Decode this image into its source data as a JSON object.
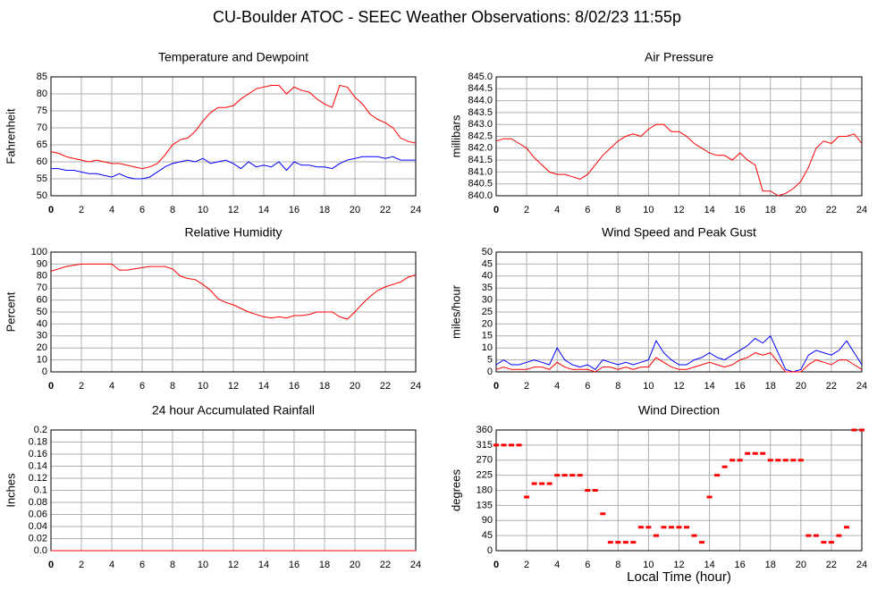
{
  "title": "CU-Boulder ATOC - SEEC Weather Observations: 8/02/23 11:55p",
  "chart_data": [
    {
      "type": "line",
      "title": "Temperature and Dewpoint",
      "ylabel": "Fahrenheit",
      "x": [
        0,
        0.5,
        1,
        1.5,
        2,
        2.5,
        3,
        3.5,
        4,
        4.5,
        5,
        5.5,
        6,
        6.5,
        7,
        7.5,
        8,
        8.5,
        9,
        9.5,
        10,
        10.5,
        11,
        11.5,
        12,
        12.5,
        13,
        13.5,
        14,
        14.5,
        15,
        15.5,
        16,
        16.5,
        17,
        17.5,
        18,
        18.5,
        19,
        19.5,
        20,
        20.5,
        21,
        21.5,
        22,
        22.5,
        23,
        23.5,
        24
      ],
      "series": [
        {
          "color": "#ff0000",
          "values": [
            63,
            62.5,
            61.5,
            61,
            60.5,
            60,
            60.5,
            60,
            59.5,
            59.5,
            59,
            58.5,
            58,
            58.5,
            59.5,
            62,
            65,
            66.5,
            67,
            69,
            72,
            74.5,
            76,
            76,
            76.5,
            78.5,
            80,
            81.5,
            82,
            82.5,
            82.5,
            80,
            82,
            81,
            80.5,
            78.5,
            77,
            76,
            82.5,
            82,
            79,
            77,
            74,
            72.5,
            71.5,
            70,
            67,
            66,
            65.5
          ]
        },
        {
          "color": "#0000ff",
          "values": [
            58,
            58,
            57.5,
            57.5,
            57,
            56.5,
            56.5,
            56,
            55.5,
            56.5,
            55.5,
            55,
            55,
            55.5,
            57,
            58.5,
            59.5,
            60,
            60.5,
            60,
            61,
            59.5,
            60,
            60.5,
            59.5,
            58,
            60,
            58.5,
            59,
            58.5,
            60,
            57.5,
            60,
            59,
            59,
            58.5,
            58.5,
            58,
            59.5,
            60.5,
            61,
            61.5,
            61.5,
            61.5,
            61,
            61.5,
            60.5,
            60.5,
            60.5
          ]
        }
      ],
      "xlim": [
        0,
        24
      ],
      "xticks": [
        0,
        2,
        4,
        6,
        8,
        10,
        12,
        14,
        16,
        18,
        20,
        22,
        24
      ],
      "ylim": [
        50,
        85
      ],
      "yticks": [
        50,
        55,
        60,
        65,
        70,
        75,
        80,
        85
      ],
      "grid": true
    },
    {
      "type": "line",
      "title": "Air Pressure",
      "ylabel": "millibars",
      "x": [
        0,
        0.5,
        1,
        1.5,
        2,
        2.5,
        3,
        3.5,
        4,
        4.5,
        5,
        5.5,
        6,
        6.5,
        7,
        7.5,
        8,
        8.5,
        9,
        9.5,
        10,
        10.5,
        11,
        11.5,
        12,
        12.5,
        13,
        13.5,
        14,
        14.5,
        15,
        15.5,
        16,
        16.5,
        17,
        17.5,
        18,
        18.5,
        19,
        19.5,
        20,
        20.5,
        21,
        21.5,
        22,
        22.5,
        23,
        23.5,
        24
      ],
      "series": [
        {
          "color": "#ff0000",
          "values": [
            842.3,
            842.4,
            842.4,
            842.2,
            842.0,
            841.6,
            841.3,
            841.0,
            840.9,
            840.9,
            840.8,
            840.7,
            840.9,
            841.3,
            841.7,
            842.0,
            842.3,
            842.5,
            842.6,
            842.5,
            842.8,
            843.0,
            843.0,
            842.7,
            842.7,
            842.5,
            842.2,
            842.0,
            841.8,
            841.7,
            841.7,
            841.5,
            841.8,
            841.5,
            841.3,
            840.2,
            840.2,
            840.0,
            840.1,
            840.3,
            840.6,
            841.2,
            842.0,
            842.3,
            842.2,
            842.5,
            842.5,
            842.6,
            842.2
          ]
        }
      ],
      "xlim": [
        0,
        24
      ],
      "xticks": [
        0,
        2,
        4,
        6,
        8,
        10,
        12,
        14,
        16,
        18,
        20,
        22,
        24
      ],
      "ylim": [
        840,
        845
      ],
      "yticks": [
        {
          "value": 840,
          "label": "840.0"
        },
        840.5,
        {
          "value": 841,
          "label": "841.0"
        },
        841.5,
        {
          "value": 842,
          "label": "842.0"
        },
        842.5,
        {
          "value": 843,
          "label": "843.0"
        },
        843.5,
        {
          "value": 844,
          "label": "844.0"
        },
        844.5,
        {
          "value": 845,
          "label": "845.0"
        }
      ],
      "grid": true
    },
    {
      "type": "line",
      "title": "Relative Humidity",
      "ylabel": "Percent",
      "x": [
        0,
        0.5,
        1,
        1.5,
        2,
        2.5,
        3,
        3.5,
        4,
        4.5,
        5,
        5.5,
        6,
        6.5,
        7,
        7.5,
        8,
        8.5,
        9,
        9.5,
        10,
        10.5,
        11,
        11.5,
        12,
        12.5,
        13,
        13.5,
        14,
        14.5,
        15,
        15.5,
        16,
        16.5,
        17,
        17.5,
        18,
        18.5,
        19,
        19.5,
        20,
        20.5,
        21,
        21.5,
        22,
        22.5,
        23,
        23.5,
        24
      ],
      "series": [
        {
          "color": "#ff0000",
          "values": [
            84,
            86,
            88,
            89,
            90,
            90,
            90,
            90,
            90,
            85,
            85,
            86,
            87,
            88,
            88,
            88,
            86,
            80,
            78,
            77,
            73,
            68,
            61,
            58,
            56,
            53,
            50,
            48,
            46,
            45,
            46,
            45,
            47,
            47,
            48,
            50,
            50,
            50,
            46,
            44,
            50,
            57,
            63,
            68,
            71,
            73,
            75,
            79,
            81
          ]
        }
      ],
      "xlim": [
        0,
        24
      ],
      "xticks": [
        0,
        2,
        4,
        6,
        8,
        10,
        12,
        14,
        16,
        18,
        20,
        22,
        24
      ],
      "ylim": [
        0,
        100
      ],
      "yticks": [
        0,
        10,
        20,
        30,
        40,
        50,
        60,
        70,
        80,
        90,
        100
      ],
      "grid": true
    },
    {
      "type": "line",
      "title": "Wind Speed and Peak Gust",
      "ylabel": "miles/hour",
      "x": [
        0,
        0.5,
        1,
        1.5,
        2,
        2.5,
        3,
        3.5,
        4,
        4.5,
        5,
        5.5,
        6,
        6.5,
        7,
        7.5,
        8,
        8.5,
        9,
        9.5,
        10,
        10.5,
        11,
        11.5,
        12,
        12.5,
        13,
        13.5,
        14,
        14.5,
        15,
        15.5,
        16,
        16.5,
        17,
        17.5,
        18,
        18.5,
        19,
        19.5,
        20,
        20.5,
        21,
        21.5,
        22,
        22.5,
        23,
        23.5,
        24
      ],
      "series": [
        {
          "color": "#0000ff",
          "values": [
            3,
            5,
            3,
            3,
            4,
            5,
            4,
            3,
            10,
            5,
            3,
            2,
            3,
            1,
            5,
            4,
            3,
            4,
            3,
            4,
            5,
            13,
            8,
            5,
            3,
            3,
            5,
            6,
            8,
            6,
            5,
            7,
            9,
            11,
            14,
            12,
            15,
            8,
            1,
            0,
            1,
            7,
            9,
            8,
            7,
            9,
            13,
            8,
            3
          ]
        },
        {
          "color": "#ff0000",
          "values": [
            1,
            2,
            1,
            1,
            1,
            2,
            2,
            1,
            4,
            2,
            1,
            1,
            1,
            0,
            2,
            2,
            1,
            2,
            1,
            2,
            2,
            6,
            4,
            2,
            1,
            1,
            2,
            3,
            4,
            3,
            2,
            3,
            5,
            6,
            8,
            7,
            8,
            4,
            0,
            0,
            0,
            3,
            5,
            4,
            3,
            5,
            5,
            3,
            1
          ]
        }
      ],
      "xlim": [
        0,
        24
      ],
      "xticks": [
        0,
        2,
        4,
        6,
        8,
        10,
        12,
        14,
        16,
        18,
        20,
        22,
        24
      ],
      "ylim": [
        0,
        50
      ],
      "yticks": [
        0,
        5,
        10,
        15,
        20,
        25,
        30,
        35,
        40,
        45,
        50
      ],
      "grid": true
    },
    {
      "type": "line",
      "title": "24 hour Accumulated Rainfall",
      "ylabel": "Inches",
      "x": [
        0,
        0.5,
        1,
        1.5,
        2,
        2.5,
        3,
        3.5,
        4,
        4.5,
        5,
        5.5,
        6,
        6.5,
        7,
        7.5,
        8,
        8.5,
        9,
        9.5,
        10,
        10.5,
        11,
        11.5,
        12,
        12.5,
        13,
        13.5,
        14,
        14.5,
        15,
        15.5,
        16,
        16.5,
        17,
        17.5,
        18,
        18.5,
        19,
        19.5,
        20,
        20.5,
        21,
        21.5,
        22,
        22.5,
        23,
        23.5,
        24
      ],
      "series": [
        {
          "color": "#ff0000",
          "values": [
            0,
            0,
            0,
            0,
            0,
            0,
            0,
            0,
            0,
            0,
            0,
            0,
            0,
            0,
            0,
            0,
            0,
            0,
            0,
            0,
            0,
            0,
            0,
            0,
            0,
            0,
            0,
            0,
            0,
            0,
            0,
            0,
            0,
            0,
            0,
            0,
            0,
            0,
            0,
            0,
            0,
            0,
            0,
            0,
            0,
            0,
            0,
            0,
            0
          ]
        }
      ],
      "xlim": [
        0,
        24
      ],
      "xticks": [
        0,
        2,
        4,
        6,
        8,
        10,
        12,
        14,
        16,
        18,
        20,
        22,
        24
      ],
      "ylim": [
        0,
        0.2
      ],
      "yticks": [
        {
          "value": 0,
          "label": "0.0"
        },
        0.02,
        0.04,
        0.06,
        0.08,
        0.1,
        0.12,
        0.14,
        0.16,
        0.18,
        0.2
      ],
      "grid": true
    },
    {
      "type": "scatter",
      "title": "Wind Direction",
      "ylabel": "degrees",
      "xlabel": "Local Time (hour)",
      "x": [
        0,
        0.5,
        1,
        1.5,
        2,
        2.5,
        3,
        3.5,
        4,
        4.5,
        5,
        5.5,
        6,
        6.5,
        7,
        7.5,
        8,
        8.5,
        9,
        9.5,
        10,
        10.5,
        11,
        11.5,
        12,
        12.5,
        13,
        13.5,
        14,
        14.5,
        15,
        15.5,
        16,
        16.5,
        17,
        17.5,
        18,
        18.5,
        19,
        19.5,
        20,
        20.5,
        21,
        21.5,
        22,
        22.5,
        23,
        23.5,
        24
      ],
      "series": [
        {
          "color": "#ff0000",
          "values": [
            315,
            315,
            315,
            315,
            160,
            200,
            200,
            200,
            225,
            225,
            225,
            225,
            180,
            180,
            110,
            25,
            25,
            25,
            25,
            70,
            70,
            45,
            70,
            70,
            70,
            70,
            45,
            25,
            160,
            225,
            250,
            270,
            270,
            290,
            290,
            290,
            270,
            270,
            270,
            270,
            270,
            45,
            45,
            25,
            25,
            45,
            70,
            360,
            360
          ]
        }
      ],
      "xlim": [
        0,
        24
      ],
      "xticks": [
        0,
        2,
        4,
        6,
        8,
        10,
        12,
        14,
        16,
        18,
        20,
        22,
        24
      ],
      "ylim": [
        0,
        360
      ],
      "yticks": [
        0,
        45,
        90,
        135,
        180,
        225,
        270,
        315,
        360
      ],
      "grid": true
    }
  ]
}
